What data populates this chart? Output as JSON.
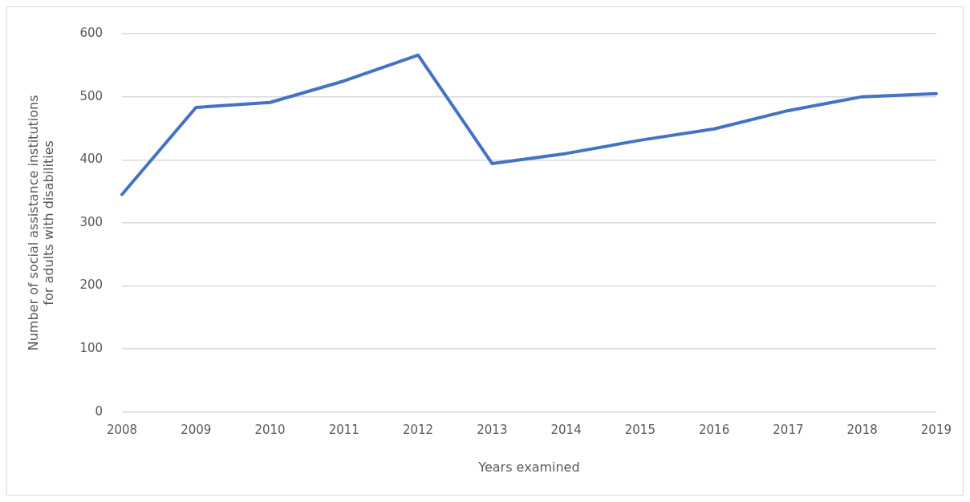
{
  "chart_data": {
    "type": "line",
    "xlabel": "Years examined",
    "ylabel": "Number of social assistance institutions for adults with disabilities",
    "categories": [
      "2008",
      "2009",
      "2010",
      "2011",
      "2012",
      "2013",
      "2014",
      "2015",
      "2016",
      "2017",
      "2018",
      "2019"
    ],
    "series": [
      {
        "color": "#4472c4",
        "values": [
          345,
          483,
          491,
          525,
          566,
          394,
          410,
          431,
          449,
          478,
          500,
          505
        ]
      }
    ],
    "ylim": [
      0,
      600
    ],
    "yticks": [
      0,
      100,
      200,
      300,
      400,
      500,
      600
    ],
    "grid": "y",
    "legend": false,
    "marker": "none",
    "line_style": "solid"
  }
}
